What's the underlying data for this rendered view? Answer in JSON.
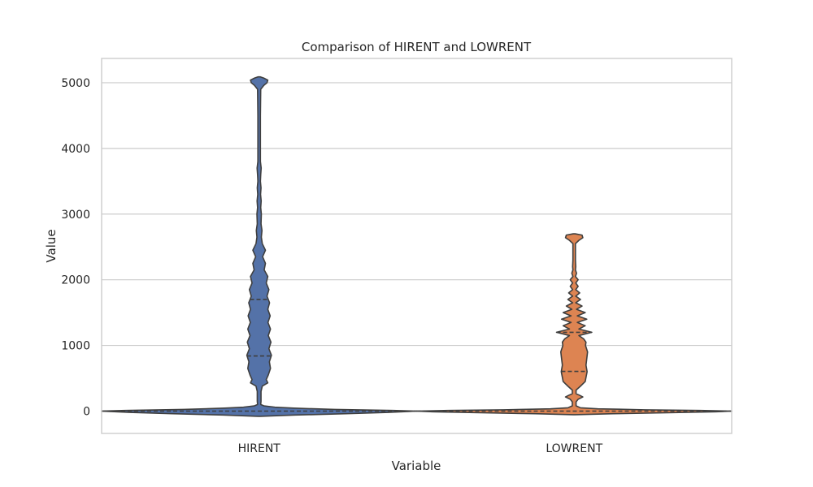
{
  "chart_data": {
    "type": "violin",
    "title": "Comparison of HIRENT and LOWRENT",
    "xlabel": "Variable",
    "ylabel": "Value",
    "ylim": [
      -340,
      5370
    ],
    "yticks": [
      0,
      1000,
      2000,
      3000,
      4000,
      5000
    ],
    "grid": true,
    "legend": "none",
    "categories": [
      "HIRENT",
      "LOWRENT"
    ],
    "series": [
      {
        "name": "HIRENT",
        "color": "#5472a8",
        "quartiles": [
          0,
          840,
          1700
        ],
        "profile": [
          [
            -80,
            0.0
          ],
          [
            -60,
            0.23
          ],
          [
            -40,
            0.55
          ],
          [
            -20,
            0.82
          ],
          [
            -5,
            0.95
          ],
          [
            0,
            1.0
          ],
          [
            10,
            0.85
          ],
          [
            25,
            0.48
          ],
          [
            45,
            0.22
          ],
          [
            60,
            0.1
          ],
          [
            80,
            0.03
          ],
          [
            100,
            0.01
          ],
          [
            150,
            0.012
          ],
          [
            300,
            0.012
          ],
          [
            380,
            0.02
          ],
          [
            430,
            0.055
          ],
          [
            480,
            0.045
          ],
          [
            550,
            0.058
          ],
          [
            650,
            0.072
          ],
          [
            750,
            0.065
          ],
          [
            850,
            0.078
          ],
          [
            950,
            0.062
          ],
          [
            1050,
            0.075
          ],
          [
            1150,
            0.058
          ],
          [
            1250,
            0.072
          ],
          [
            1350,
            0.056
          ],
          [
            1450,
            0.07
          ],
          [
            1550,
            0.055
          ],
          [
            1650,
            0.066
          ],
          [
            1750,
            0.05
          ],
          [
            1850,
            0.062
          ],
          [
            1950,
            0.045
          ],
          [
            2050,
            0.055
          ],
          [
            2150,
            0.032
          ],
          [
            2250,
            0.04
          ],
          [
            2350,
            0.022
          ],
          [
            2450,
            0.04
          ],
          [
            2550,
            0.02
          ],
          [
            2650,
            0.014
          ],
          [
            2750,
            0.018
          ],
          [
            2850,
            0.012
          ],
          [
            3000,
            0.014
          ],
          [
            3100,
            0.01
          ],
          [
            3200,
            0.013
          ],
          [
            3300,
            0.009
          ],
          [
            3400,
            0.012
          ],
          [
            3500,
            0.008
          ],
          [
            3600,
            0.01
          ],
          [
            3700,
            0.013
          ],
          [
            3800,
            0.008
          ],
          [
            4000,
            0.008
          ],
          [
            4500,
            0.008
          ],
          [
            4900,
            0.01
          ],
          [
            4960,
            0.03
          ],
          [
            5000,
            0.05
          ],
          [
            5040,
            0.055
          ],
          [
            5070,
            0.03
          ],
          [
            5090,
            0.0
          ]
        ]
      },
      {
        "name": "LOWRENT",
        "color": "#dd8452",
        "quartiles": [
          0,
          605,
          1200
        ],
        "profile": [
          [
            -55,
            0.0
          ],
          [
            -40,
            0.25
          ],
          [
            -25,
            0.6
          ],
          [
            -10,
            0.9
          ],
          [
            0,
            1.0
          ],
          [
            10,
            0.8
          ],
          [
            20,
            0.45
          ],
          [
            35,
            0.15
          ],
          [
            50,
            0.04
          ],
          [
            80,
            0.012
          ],
          [
            140,
            0.012
          ],
          [
            180,
            0.025
          ],
          [
            215,
            0.055
          ],
          [
            240,
            0.035
          ],
          [
            265,
            0.012
          ],
          [
            320,
            0.012
          ],
          [
            380,
            0.04
          ],
          [
            450,
            0.07
          ],
          [
            550,
            0.078
          ],
          [
            600,
            0.082
          ],
          [
            700,
            0.075
          ],
          [
            800,
            0.08
          ],
          [
            900,
            0.085
          ],
          [
            1000,
            0.072
          ],
          [
            1050,
            0.075
          ],
          [
            1100,
            0.06
          ],
          [
            1150,
            0.03
          ],
          [
            1200,
            0.112
          ],
          [
            1250,
            0.03
          ],
          [
            1300,
            0.07
          ],
          [
            1350,
            0.02
          ],
          [
            1400,
            0.08
          ],
          [
            1450,
            0.02
          ],
          [
            1500,
            0.07
          ],
          [
            1550,
            0.015
          ],
          [
            1600,
            0.05
          ],
          [
            1650,
            0.01
          ],
          [
            1700,
            0.04
          ],
          [
            1750,
            0.01
          ],
          [
            1800,
            0.035
          ],
          [
            1850,
            0.01
          ],
          [
            1900,
            0.025
          ],
          [
            1950,
            0.01
          ],
          [
            2000,
            0.025
          ],
          [
            2050,
            0.008
          ],
          [
            2100,
            0.015
          ],
          [
            2150,
            0.008
          ],
          [
            2200,
            0.01
          ],
          [
            2300,
            0.008
          ],
          [
            2550,
            0.008
          ],
          [
            2600,
            0.03
          ],
          [
            2640,
            0.055
          ],
          [
            2680,
            0.05
          ],
          [
            2700,
            0.0
          ]
        ]
      }
    ]
  }
}
